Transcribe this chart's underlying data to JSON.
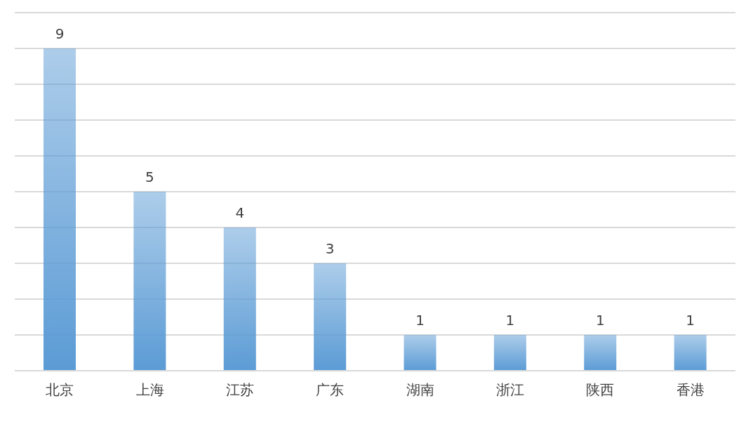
{
  "chart_data": {
    "type": "bar",
    "categories": [
      "北京",
      "上海",
      "江苏",
      "广东",
      "湖南",
      "浙江",
      "陕西",
      "香港"
    ],
    "values": [
      9,
      5,
      4,
      3,
      1,
      1,
      1,
      1
    ],
    "color": "#5b9bd5",
    "ylim": [
      0,
      10
    ],
    "yticks": [
      {
        "value": 0,
        "label": null
      },
      {
        "value": 1,
        "label": null
      },
      {
        "value": 2,
        "label": null
      },
      {
        "value": 3,
        "label": null
      },
      {
        "value": 4,
        "label": null
      },
      {
        "value": 5,
        "label": null
      },
      {
        "value": 6,
        "label": null
      },
      {
        "value": 7,
        "label": null
      },
      {
        "value": 8,
        "label": null
      },
      {
        "value": 9,
        "label": null
      },
      {
        "value": 10,
        "label": null
      }
    ],
    "grid": "y",
    "tick_labels": "x",
    "data_labels": true
  }
}
